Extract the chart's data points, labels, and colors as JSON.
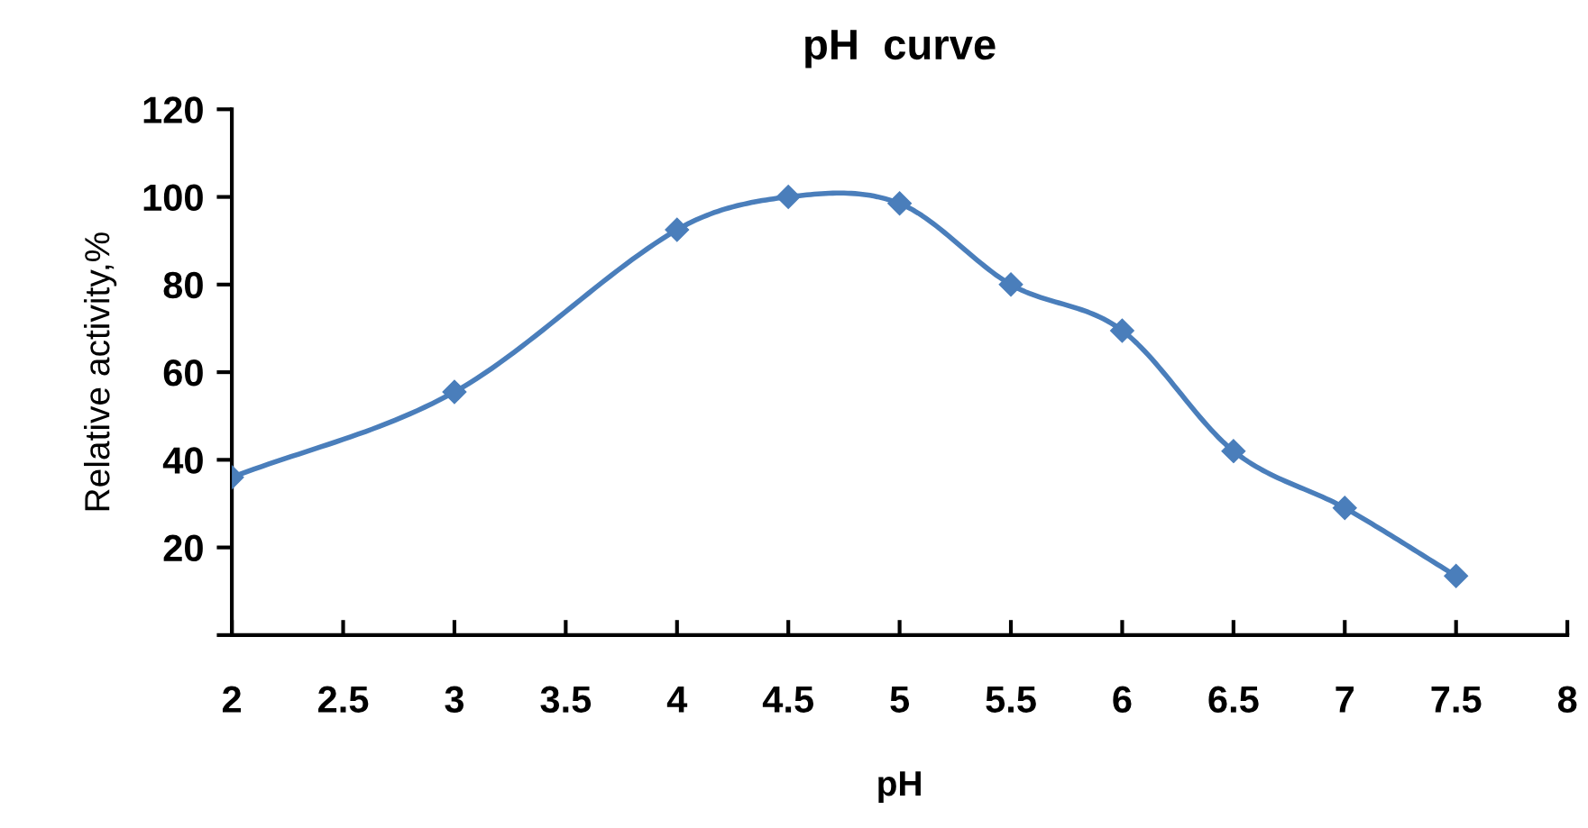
{
  "chart_data": {
    "type": "line",
    "title": "pH  curve",
    "xlabel": "pH",
    "ylabel": "Relative activity,%",
    "x": [
      2,
      3,
      4,
      4.5,
      5,
      5.5,
      6,
      6.5,
      7,
      7.5
    ],
    "series": [
      {
        "color": "#4a7ebb",
        "values": [
          36,
          55.5,
          92.5,
          100,
          98.5,
          80,
          69.5,
          42,
          29,
          13.5
        ]
      }
    ],
    "xlim": [
      2,
      8
    ],
    "xticks": [
      2,
      2.5,
      3,
      3.5,
      4,
      4.5,
      5,
      5.5,
      6,
      6.5,
      7,
      7.5,
      8
    ],
    "ylim": [
      0,
      120
    ],
    "yticks": [
      {
        "value": 0,
        "label": null
      },
      20,
      40,
      60,
      80,
      100,
      120
    ],
    "marker": "diamond",
    "line_style": "solid",
    "grid": false,
    "legend": false
  }
}
